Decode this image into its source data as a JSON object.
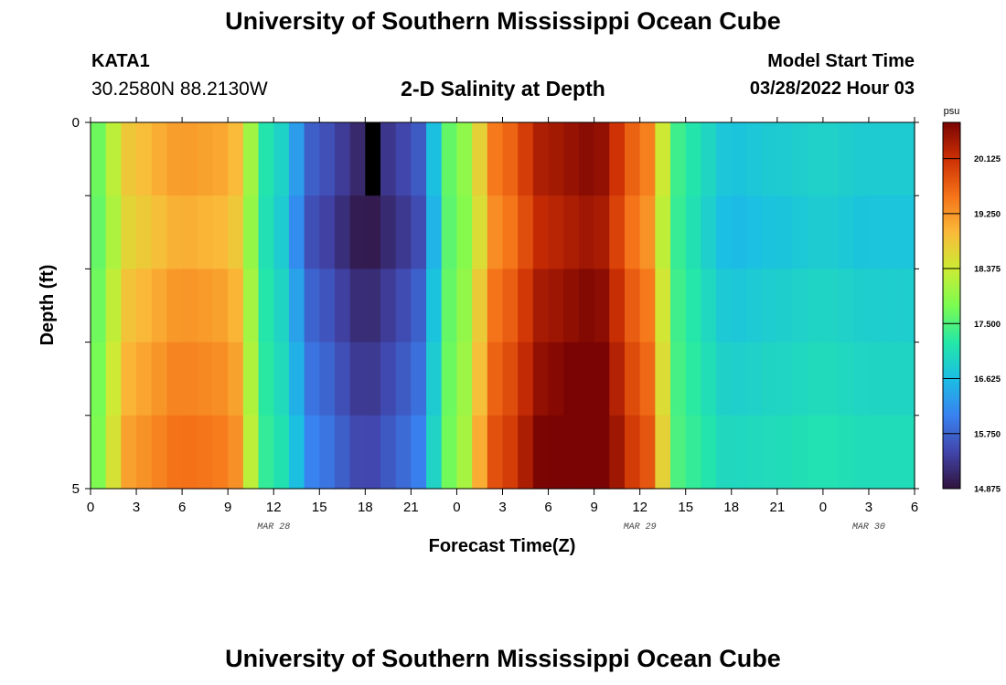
{
  "header": {
    "title": "University of Southern Mississippi Ocean Cube",
    "station_id": "KATA1",
    "station_coords": "30.2580N  88.2130W",
    "plot_title": "2-D Salinity at Depth",
    "model_start_label": "Model Start Time",
    "model_start_value": "03/28/2022 Hour 03"
  },
  "footer": {
    "title": "University of Southern Mississippi Ocean Cube"
  },
  "chart_data": {
    "type": "heatmap",
    "title": "2-D Salinity at Depth",
    "xlabel": "Forecast Time(Z)",
    "ylabel": "Depth (ft)",
    "x_tick_labels": [
      "0",
      "3",
      "6",
      "9",
      "12",
      "15",
      "18",
      "21",
      "0",
      "3",
      "6",
      "9",
      "12",
      "15",
      "18",
      "21",
      "0",
      "3",
      "6"
    ],
    "x_hours_from_start": [
      0,
      3,
      6,
      9,
      12,
      15,
      18,
      21,
      24,
      27,
      30,
      33,
      36,
      39,
      42,
      45,
      48,
      51,
      54
    ],
    "date_labels": [
      {
        "label": "MAR 28",
        "at_hour": 12
      },
      {
        "label": "MAR 29",
        "at_hour": 36
      },
      {
        "label": "MAR 30",
        "at_hour": 51
      }
    ],
    "xlim": [
      0,
      54
    ],
    "y_tick_labels": [
      "0",
      "5"
    ],
    "ylim": [
      0,
      5
    ],
    "depth_levels": [
      0,
      1,
      2,
      3,
      4,
      5
    ],
    "colorbar": {
      "unit": "psu",
      "min": 14.875,
      "max": 20.7,
      "ticks": [
        20.125,
        19.25,
        18.375,
        17.5,
        16.625,
        15.75,
        14.875
      ],
      "tick_labels": [
        "20.125",
        "19.250",
        "18.375",
        "17.500",
        "16.625",
        "15.750",
        "14.875"
      ],
      "colormap": "turbo"
    },
    "time_step_hours": 1,
    "salinity_profile_hours": [
      0,
      3,
      6,
      9,
      12,
      15,
      18,
      21,
      24,
      27,
      30,
      33,
      36,
      39,
      42,
      45,
      48,
      51,
      54
    ],
    "salinity_profile_values": [
      17.6,
      18.9,
      19.2,
      19.1,
      17.0,
      15.6,
      15.1,
      15.5,
      17.8,
      19.6,
      20.4,
      20.6,
      19.6,
      17.2,
      16.7,
      16.8,
      16.9,
      16.8,
      16.8
    ],
    "depth_layer_offsets": [
      0.0,
      -0.15,
      0.05,
      0.2,
      0.35,
      0.55
    ],
    "missing_cell": {
      "hour": 18,
      "depth_layer": 0,
      "color": "#000000"
    }
  }
}
